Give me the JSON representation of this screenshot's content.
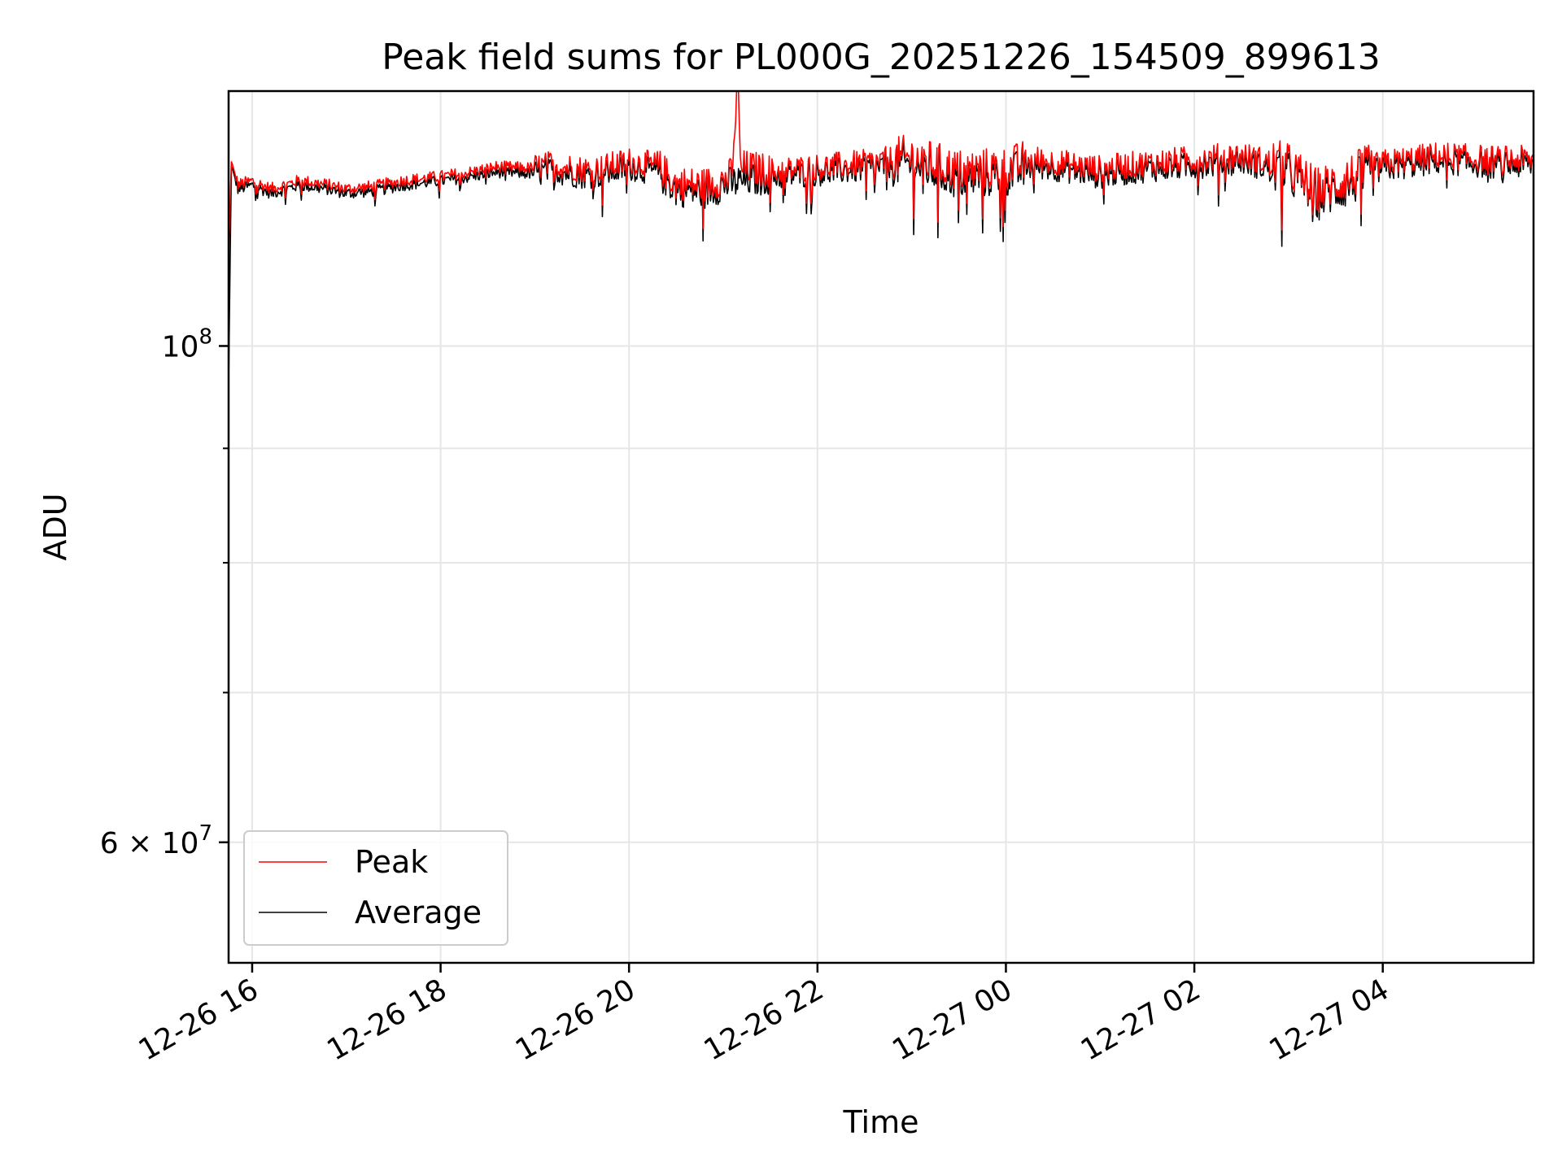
{
  "chart_data": {
    "type": "line",
    "title": "Peak field sums for PL000G_20251226_154509_899613",
    "xlabel": "Time",
    "ylabel": "ADU",
    "yscale": "log",
    "ylim": [
      53000000,
      130000000
    ],
    "xlim_hours": [
      15.75,
      29.6
    ],
    "x_ticks": [
      {
        "hour": 16,
        "label": "12-26 16"
      },
      {
        "hour": 18,
        "label": "12-26 18"
      },
      {
        "hour": 20,
        "label": "12-26 20"
      },
      {
        "hour": 22,
        "label": "12-26 22"
      },
      {
        "hour": 24,
        "label": "12-27 00"
      },
      {
        "hour": 26,
        "label": "12-27 02"
      },
      {
        "hour": 28,
        "label": "12-27 04"
      }
    ],
    "y_major_ticks": [
      {
        "value": 100000000,
        "label": "10^8",
        "base": "10",
        "exp": "8",
        "prefix": ""
      },
      {
        "value": 60000000,
        "label": "6×10^7",
        "base": "10",
        "exp": "7",
        "prefix": "6 × "
      }
    ],
    "y_minor_ticks": [
      70000000,
      80000000,
      90000000
    ],
    "grid": true,
    "legend": {
      "position": "lower-left",
      "entries": [
        {
          "name": "Peak",
          "color": "#ff0000"
        },
        {
          "name": "Average",
          "color": "#000000"
        }
      ]
    },
    "series": [
      {
        "name": "Peak",
        "color": "#ff0000",
        "description": "tracks Average closely, slightly higher; single spike above plot top near 21:10",
        "points": [
          [
            15.75,
            110000000.0
          ],
          [
            15.78,
            121000000.0
          ],
          [
            15.85,
            118000000.0
          ],
          [
            16.0,
            118500000.0
          ],
          [
            16.2,
            117500000.0
          ],
          [
            16.5,
            118500000.0
          ],
          [
            16.8,
            118000000.0
          ],
          [
            17.0,
            117500000.0
          ],
          [
            17.3,
            117800000.0
          ],
          [
            17.6,
            118500000.0
          ],
          [
            18.0,
            119000000.0
          ],
          [
            18.3,
            119500000.0
          ],
          [
            18.6,
            120200000.0
          ],
          [
            19.0,
            120000000.0
          ],
          [
            19.2,
            120400000.0
          ],
          [
            19.5,
            119800000.0
          ],
          [
            19.7,
            119900000.0
          ],
          [
            20.0,
            120800000.0
          ],
          [
            20.3,
            120200000.0
          ],
          [
            20.5,
            118000000.0
          ],
          [
            20.8,
            117800000.0
          ],
          [
            21.0,
            118500000.0
          ],
          [
            21.08,
            119000000.0
          ],
          [
            21.12,
            122000000.0
          ],
          [
            21.14,
            131000000.0
          ],
          [
            21.16,
            131000000.0
          ],
          [
            21.18,
            120000000.0
          ],
          [
            21.5,
            119500000.0
          ],
          [
            22.0,
            120000000.0
          ],
          [
            22.5,
            120500000.0
          ],
          [
            23.0,
            121300000.0
          ],
          [
            23.5,
            119500000.0
          ],
          [
            24.0,
            119800000.0
          ],
          [
            24.3,
            121000000.0
          ],
          [
            24.6,
            120500000.0
          ],
          [
            25.0,
            119800000.0
          ],
          [
            25.5,
            120500000.0
          ],
          [
            26.0,
            121000000.0
          ],
          [
            26.5,
            121500000.0
          ],
          [
            27.0,
            120000000.0
          ],
          [
            27.3,
            117000000.0
          ],
          [
            27.5,
            118000000.0
          ],
          [
            27.8,
            119500000.0
          ],
          [
            28.0,
            120500000.0
          ],
          [
            28.3,
            121000000.0
          ],
          [
            28.6,
            121500000.0
          ],
          [
            28.9,
            121200000.0
          ],
          [
            29.2,
            121000000.0
          ],
          [
            29.6,
            121000000.0
          ]
        ]
      },
      {
        "name": "Average",
        "color": "#000000",
        "description": "noisy trace around 1.19e8 with dips near 22:30-23:50 and 03:15",
        "points": [
          [
            15.75,
            96000000.0
          ],
          [
            15.78,
            120500000.0
          ],
          [
            15.85,
            117500000.0
          ],
          [
            16.0,
            118000000.0
          ],
          [
            16.2,
            117000000.0
          ],
          [
            16.5,
            118000000.0
          ],
          [
            16.8,
            117500000.0
          ],
          [
            17.0,
            117000000.0
          ],
          [
            17.3,
            117300000.0
          ],
          [
            17.6,
            118000000.0
          ],
          [
            18.0,
            118500000.0
          ],
          [
            18.3,
            119000000.0
          ],
          [
            18.6,
            119600000.0
          ],
          [
            19.0,
            119400000.0
          ],
          [
            19.2,
            119800000.0
          ],
          [
            19.5,
            119200000.0
          ],
          [
            19.7,
            119300000.0
          ],
          [
            20.0,
            120200000.0
          ],
          [
            20.3,
            119600000.0
          ],
          [
            20.5,
            117500000.0
          ],
          [
            20.8,
            117200000.0
          ],
          [
            21.0,
            118000000.0
          ],
          [
            21.2,
            118500000.0
          ],
          [
            21.5,
            119000000.0
          ],
          [
            22.0,
            119500000.0
          ],
          [
            22.5,
            120000000.0
          ],
          [
            23.0,
            120700000.0
          ],
          [
            23.5,
            118800000.0
          ],
          [
            24.0,
            119200000.0
          ],
          [
            24.3,
            120400000.0
          ],
          [
            24.6,
            120000000.0
          ],
          [
            25.0,
            119200000.0
          ],
          [
            25.5,
            120000000.0
          ],
          [
            26.0,
            120400000.0
          ],
          [
            26.5,
            121000000.0
          ],
          [
            27.0,
            119400000.0
          ],
          [
            27.2,
            118000000.0
          ],
          [
            27.3,
            116500000.0
          ],
          [
            27.5,
            117400000.0
          ],
          [
            27.8,
            119000000.0
          ],
          [
            28.0,
            120000000.0
          ],
          [
            28.3,
            120500000.0
          ],
          [
            28.6,
            121000000.0
          ],
          [
            28.9,
            120700000.0
          ],
          [
            29.2,
            120400000.0
          ],
          [
            29.6,
            120500000.0
          ]
        ]
      }
    ]
  }
}
